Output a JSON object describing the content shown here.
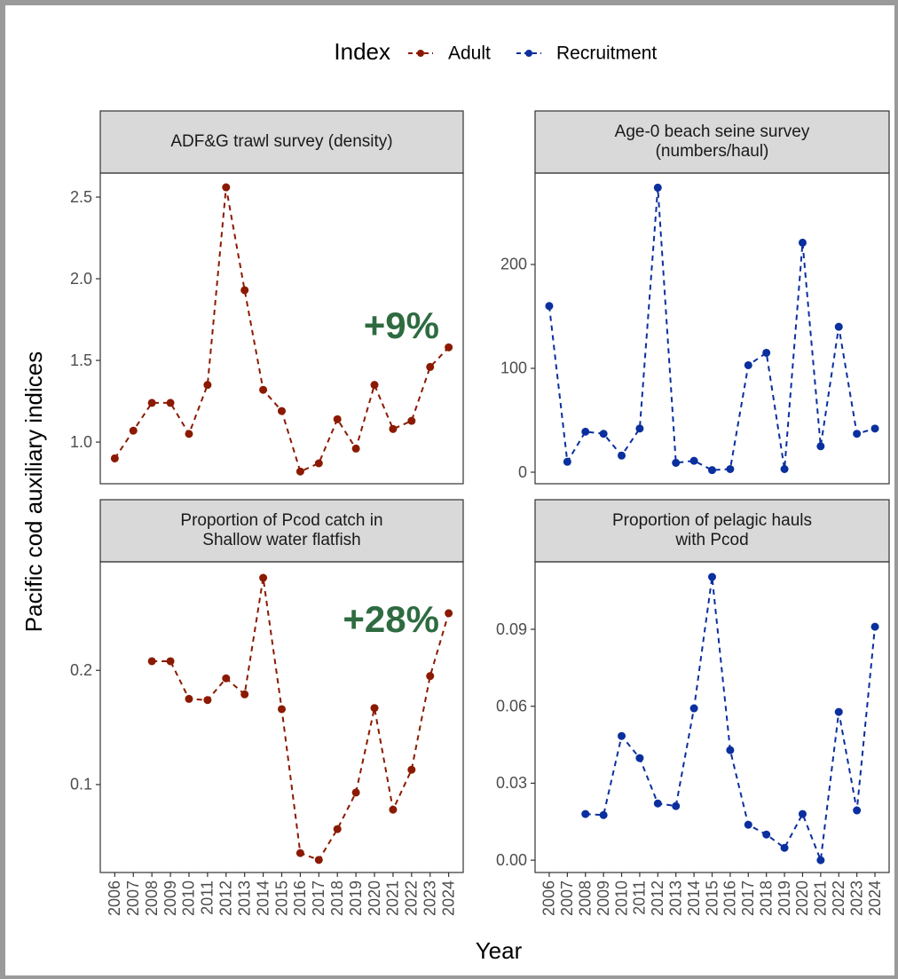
{
  "legend_title": "Index",
  "ylabel": "Pacific cod auxiliary indices",
  "xlabel": "Year",
  "chart_data": [
    {
      "type": "line",
      "title": [
        "ADF&G trawl survey (density)"
      ],
      "annotation": "+9%",
      "categories": [
        "2006",
        "2007",
        "2008",
        "2009",
        "2010",
        "2011",
        "2012",
        "2013",
        "2014",
        "2015",
        "2016",
        "2017",
        "2018",
        "2019",
        "2020",
        "2021",
        "2022",
        "2023",
        "2024"
      ],
      "series": [
        {
          "name": "Adult",
          "color": "#8b1a00",
          "values": [
            0.9,
            1.07,
            1.24,
            1.24,
            1.05,
            1.35,
            2.56,
            1.93,
            1.32,
            1.19,
            0.82,
            0.87,
            1.14,
            0.96,
            1.35,
            1.08,
            1.13,
            1.46,
            1.58
          ]
        }
      ],
      "ylim": [
        0.745,
        2.647
      ],
      "yticks": [
        {
          "value": 1,
          "label": "1.0"
        },
        1.5,
        {
          "value": 2,
          "label": "2.0"
        },
        2.5
      ]
    },
    {
      "type": "line",
      "title": [
        "Age-0 beach seine survey",
        "(numbers/haul)"
      ],
      "categories": [
        "2006",
        "2007",
        "2008",
        "2009",
        "2010",
        "2011",
        "2012",
        "2013",
        "2014",
        "2015",
        "2016",
        "2017",
        "2018",
        "2019",
        "2020",
        "2021",
        "2022",
        "2023",
        "2024"
      ],
      "series": [
        {
          "name": "Recruitment",
          "color": "#0a2f9e",
          "values": [
            160,
            10,
            39,
            37,
            16,
            42,
            274,
            9,
            11,
            2,
            3,
            103,
            115,
            3,
            221,
            25,
            140,
            37,
            42
          ]
        }
      ],
      "ylim": [
        -11.1,
        288
      ],
      "yticks": [
        0,
        100,
        200
      ]
    },
    {
      "type": "line",
      "title": [
        "Proportion of Pcod catch in",
        "Shallow water flatfish"
      ],
      "annotation": "+28%",
      "categories": [
        "2006",
        "2007",
        "2008",
        "2009",
        "2010",
        "2011",
        "2012",
        "2013",
        "2014",
        "2015",
        "2016",
        "2017",
        "2018",
        "2019",
        "2020",
        "2021",
        "2022",
        "2023",
        "2024"
      ],
      "series": [
        {
          "name": "Adult",
          "color": "#8b1a00",
          "values": [
            null,
            null,
            0.208,
            0.208,
            0.175,
            0.174,
            0.193,
            0.179,
            0.281,
            0.166,
            0.04,
            0.034,
            0.061,
            0.093,
            0.167,
            0.078,
            0.113,
            0.195,
            0.25
          ]
        }
      ],
      "ylim": [
        0.023,
        0.295
      ],
      "yticks": [
        0.1,
        0.2
      ]
    },
    {
      "type": "line",
      "title": [
        "Proportion of pelagic hauls",
        "with Pcod"
      ],
      "categories": [
        "2006",
        "2007",
        "2008",
        "2009",
        "2010",
        "2011",
        "2012",
        "2013",
        "2014",
        "2015",
        "2016",
        "2017",
        "2018",
        "2019",
        "2020",
        "2021",
        "2022",
        "2023",
        "2024"
      ],
      "series": [
        {
          "name": "Recruitment",
          "color": "#0a2f9e",
          "values": [
            null,
            null,
            0.018,
            0.0176,
            0.0484,
            0.0398,
            0.0221,
            0.0211,
            0.0592,
            0.1104,
            0.0429,
            0.0138,
            0.01,
            0.0048,
            0.018,
            0.0,
            0.0578,
            0.0194,
            0.091
          ]
        }
      ],
      "ylim": [
        -0.0048,
        0.1163
      ],
      "yticks": [
        {
          "value": 0,
          "label": "0.00"
        },
        0.03,
        0.06,
        0.09
      ]
    }
  ]
}
